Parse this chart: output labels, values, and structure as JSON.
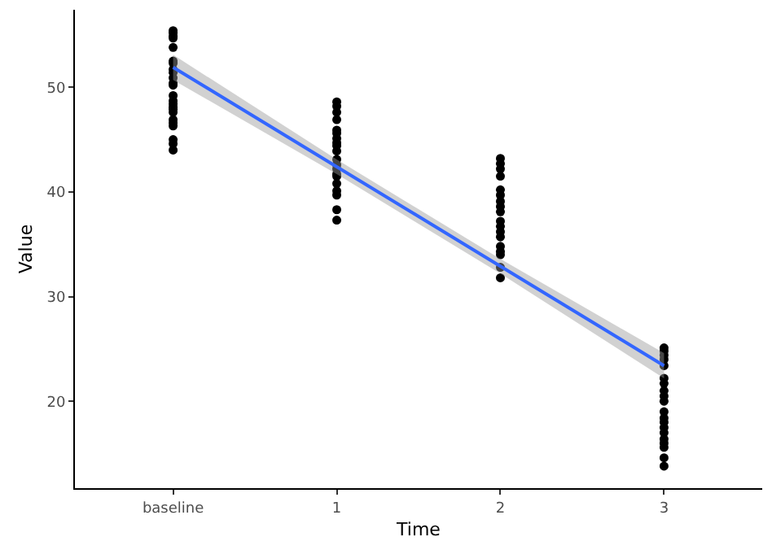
{
  "chart_data": {
    "type": "scatter",
    "xlabel": "Time",
    "ylabel": "Value",
    "categories": [
      "baseline",
      "1",
      "2",
      "3"
    ],
    "ylim": [
      11.7,
      57.4
    ],
    "yticks": [
      20,
      30,
      40,
      50
    ],
    "grid": false,
    "series": [
      {
        "marker": "circle",
        "color": "#000000",
        "x": [
          "baseline",
          "baseline",
          "baseline",
          "baseline",
          "baseline",
          "baseline",
          "baseline",
          "baseline",
          "baseline",
          "baseline",
          "baseline",
          "baseline",
          "baseline",
          "baseline",
          "baseline",
          "baseline",
          "baseline",
          "baseline",
          "baseline",
          "baseline",
          "baseline",
          "baseline",
          "baseline",
          "baseline",
          "1",
          "1",
          "1",
          "1",
          "1",
          "1",
          "1",
          "1",
          "1",
          "1",
          "1",
          "1",
          "1",
          "1",
          "1",
          "1",
          "1",
          "1",
          "1",
          "1",
          "2",
          "2",
          "2",
          "2",
          "2",
          "2",
          "2",
          "2",
          "2",
          "2",
          "2",
          "2",
          "2",
          "2",
          "2",
          "2",
          "2",
          "2",
          "3",
          "3",
          "3",
          "3",
          "3",
          "3",
          "3",
          "3",
          "3",
          "3",
          "3",
          "3",
          "3",
          "3",
          "3",
          "3",
          "3",
          "3",
          "3",
          "3"
        ],
        "values": [
          55.4,
          55.2,
          54.9,
          54.7,
          53.8,
          52.5,
          52.3,
          51.7,
          51.4,
          50.9,
          50.4,
          50.2,
          49.2,
          48.7,
          48.4,
          48.1,
          47.9,
          47.6,
          46.9,
          46.6,
          46.3,
          45.0,
          44.6,
          44.0,
          48.6,
          48.2,
          47.6,
          46.9,
          45.9,
          45.6,
          45.1,
          44.7,
          44.4,
          43.9,
          43.1,
          42.6,
          42.2,
          41.7,
          41.5,
          40.8,
          40.1,
          39.7,
          38.3,
          37.3,
          43.2,
          42.7,
          42.2,
          41.5,
          40.2,
          39.7,
          39.1,
          38.6,
          38.1,
          37.2,
          36.7,
          36.2,
          35.7,
          34.8,
          34.3,
          34.0,
          32.8,
          31.8,
          25.1,
          24.8,
          24.4,
          24.0,
          23.4,
          22.2,
          21.7,
          21.0,
          20.5,
          20.0,
          19.0,
          18.4,
          18.0,
          17.5,
          17.0,
          16.4,
          16.0,
          15.6,
          14.6,
          13.8
        ]
      },
      {
        "type": "line",
        "color": "#3366ff",
        "x": [
          "baseline",
          "1",
          "2",
          "3"
        ],
        "values": [
          51.9,
          42.4,
          32.9,
          23.4
        ],
        "lower": [
          50.7,
          41.7,
          32.2,
          22.2
        ],
        "upper": [
          53.1,
          43.1,
          33.6,
          24.6
        ]
      }
    ]
  }
}
